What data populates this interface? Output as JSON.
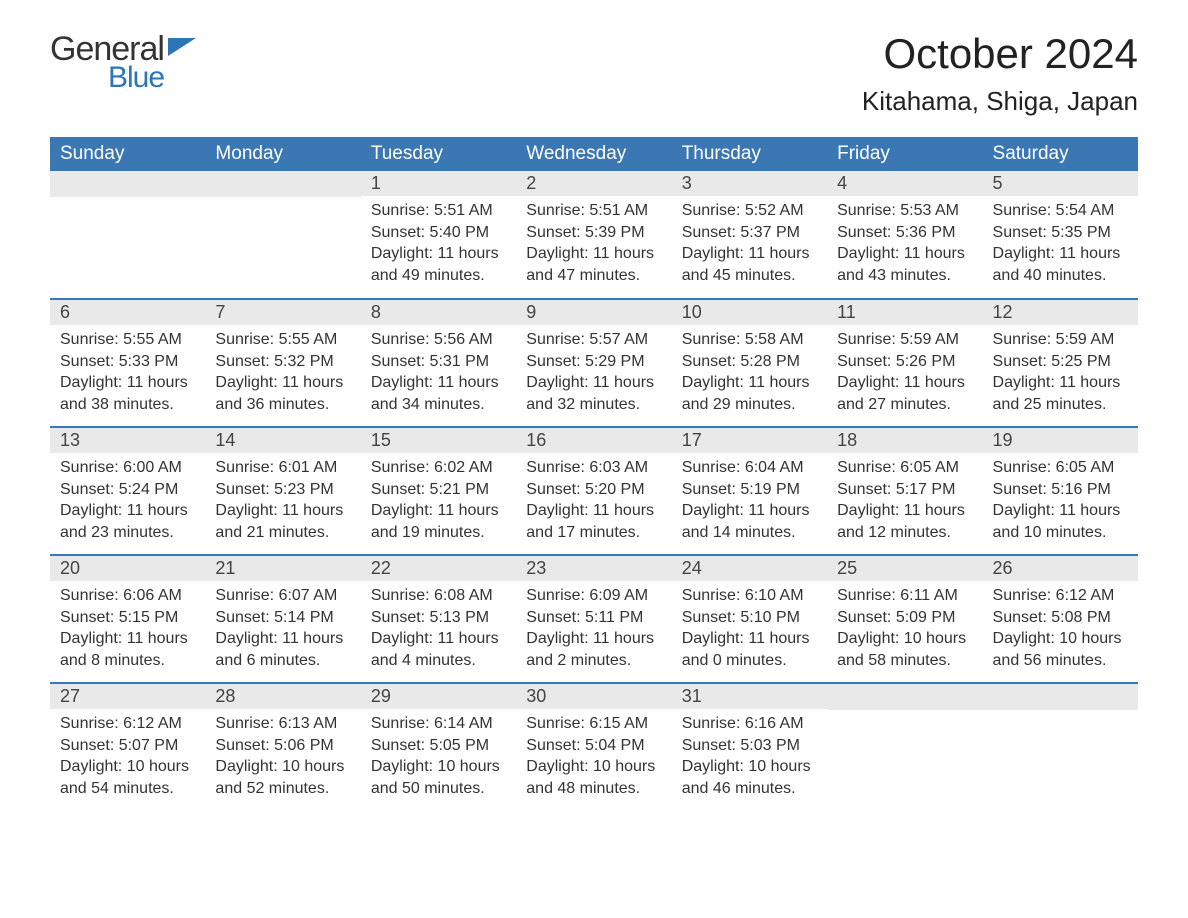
{
  "brand": {
    "line1": "General",
    "line2": "Blue",
    "brand_color": "#2e75b6"
  },
  "title": "October 2024",
  "location": "Kitahama, Shiga, Japan",
  "colors": {
    "header_bg": "#3a77b3",
    "header_text": "#ffffff",
    "daynum_bg": "#e9e9e9",
    "row_border": "#3a77b3",
    "body_text": "#333333",
    "page_bg": "#ffffff"
  },
  "layout": {
    "columns": 7,
    "rows": 5,
    "first_day_column_index": 2
  },
  "day_headers": [
    "Sunday",
    "Monday",
    "Tuesday",
    "Wednesday",
    "Thursday",
    "Friday",
    "Saturday"
  ],
  "days": [
    {
      "n": 1,
      "sunrise": "5:51 AM",
      "sunset": "5:40 PM",
      "daylight": "11 hours and 49 minutes."
    },
    {
      "n": 2,
      "sunrise": "5:51 AM",
      "sunset": "5:39 PM",
      "daylight": "11 hours and 47 minutes."
    },
    {
      "n": 3,
      "sunrise": "5:52 AM",
      "sunset": "5:37 PM",
      "daylight": "11 hours and 45 minutes."
    },
    {
      "n": 4,
      "sunrise": "5:53 AM",
      "sunset": "5:36 PM",
      "daylight": "11 hours and 43 minutes."
    },
    {
      "n": 5,
      "sunrise": "5:54 AM",
      "sunset": "5:35 PM",
      "daylight": "11 hours and 40 minutes."
    },
    {
      "n": 6,
      "sunrise": "5:55 AM",
      "sunset": "5:33 PM",
      "daylight": "11 hours and 38 minutes."
    },
    {
      "n": 7,
      "sunrise": "5:55 AM",
      "sunset": "5:32 PM",
      "daylight": "11 hours and 36 minutes."
    },
    {
      "n": 8,
      "sunrise": "5:56 AM",
      "sunset": "5:31 PM",
      "daylight": "11 hours and 34 minutes."
    },
    {
      "n": 9,
      "sunrise": "5:57 AM",
      "sunset": "5:29 PM",
      "daylight": "11 hours and 32 minutes."
    },
    {
      "n": 10,
      "sunrise": "5:58 AM",
      "sunset": "5:28 PM",
      "daylight": "11 hours and 29 minutes."
    },
    {
      "n": 11,
      "sunrise": "5:59 AM",
      "sunset": "5:26 PM",
      "daylight": "11 hours and 27 minutes."
    },
    {
      "n": 12,
      "sunrise": "5:59 AM",
      "sunset": "5:25 PM",
      "daylight": "11 hours and 25 minutes."
    },
    {
      "n": 13,
      "sunrise": "6:00 AM",
      "sunset": "5:24 PM",
      "daylight": "11 hours and 23 minutes."
    },
    {
      "n": 14,
      "sunrise": "6:01 AM",
      "sunset": "5:23 PM",
      "daylight": "11 hours and 21 minutes."
    },
    {
      "n": 15,
      "sunrise": "6:02 AM",
      "sunset": "5:21 PM",
      "daylight": "11 hours and 19 minutes."
    },
    {
      "n": 16,
      "sunrise": "6:03 AM",
      "sunset": "5:20 PM",
      "daylight": "11 hours and 17 minutes."
    },
    {
      "n": 17,
      "sunrise": "6:04 AM",
      "sunset": "5:19 PM",
      "daylight": "11 hours and 14 minutes."
    },
    {
      "n": 18,
      "sunrise": "6:05 AM",
      "sunset": "5:17 PM",
      "daylight": "11 hours and 12 minutes."
    },
    {
      "n": 19,
      "sunrise": "6:05 AM",
      "sunset": "5:16 PM",
      "daylight": "11 hours and 10 minutes."
    },
    {
      "n": 20,
      "sunrise": "6:06 AM",
      "sunset": "5:15 PM",
      "daylight": "11 hours and 8 minutes."
    },
    {
      "n": 21,
      "sunrise": "6:07 AM",
      "sunset": "5:14 PM",
      "daylight": "11 hours and 6 minutes."
    },
    {
      "n": 22,
      "sunrise": "6:08 AM",
      "sunset": "5:13 PM",
      "daylight": "11 hours and 4 minutes."
    },
    {
      "n": 23,
      "sunrise": "6:09 AM",
      "sunset": "5:11 PM",
      "daylight": "11 hours and 2 minutes."
    },
    {
      "n": 24,
      "sunrise": "6:10 AM",
      "sunset": "5:10 PM",
      "daylight": "11 hours and 0 minutes."
    },
    {
      "n": 25,
      "sunrise": "6:11 AM",
      "sunset": "5:09 PM",
      "daylight": "10 hours and 58 minutes."
    },
    {
      "n": 26,
      "sunrise": "6:12 AM",
      "sunset": "5:08 PM",
      "daylight": "10 hours and 56 minutes."
    },
    {
      "n": 27,
      "sunrise": "6:12 AM",
      "sunset": "5:07 PM",
      "daylight": "10 hours and 54 minutes."
    },
    {
      "n": 28,
      "sunrise": "6:13 AM",
      "sunset": "5:06 PM",
      "daylight": "10 hours and 52 minutes."
    },
    {
      "n": 29,
      "sunrise": "6:14 AM",
      "sunset": "5:05 PM",
      "daylight": "10 hours and 50 minutes."
    },
    {
      "n": 30,
      "sunrise": "6:15 AM",
      "sunset": "5:04 PM",
      "daylight": "10 hours and 48 minutes."
    },
    {
      "n": 31,
      "sunrise": "6:16 AM",
      "sunset": "5:03 PM",
      "daylight": "10 hours and 46 minutes."
    }
  ],
  "labels": {
    "sunrise": "Sunrise:",
    "sunset": "Sunset:",
    "daylight": "Daylight:"
  },
  "typography": {
    "title_fontsize": 42,
    "location_fontsize": 26,
    "header_fontsize": 19,
    "daynum_fontsize": 18,
    "body_fontsize": 16
  }
}
